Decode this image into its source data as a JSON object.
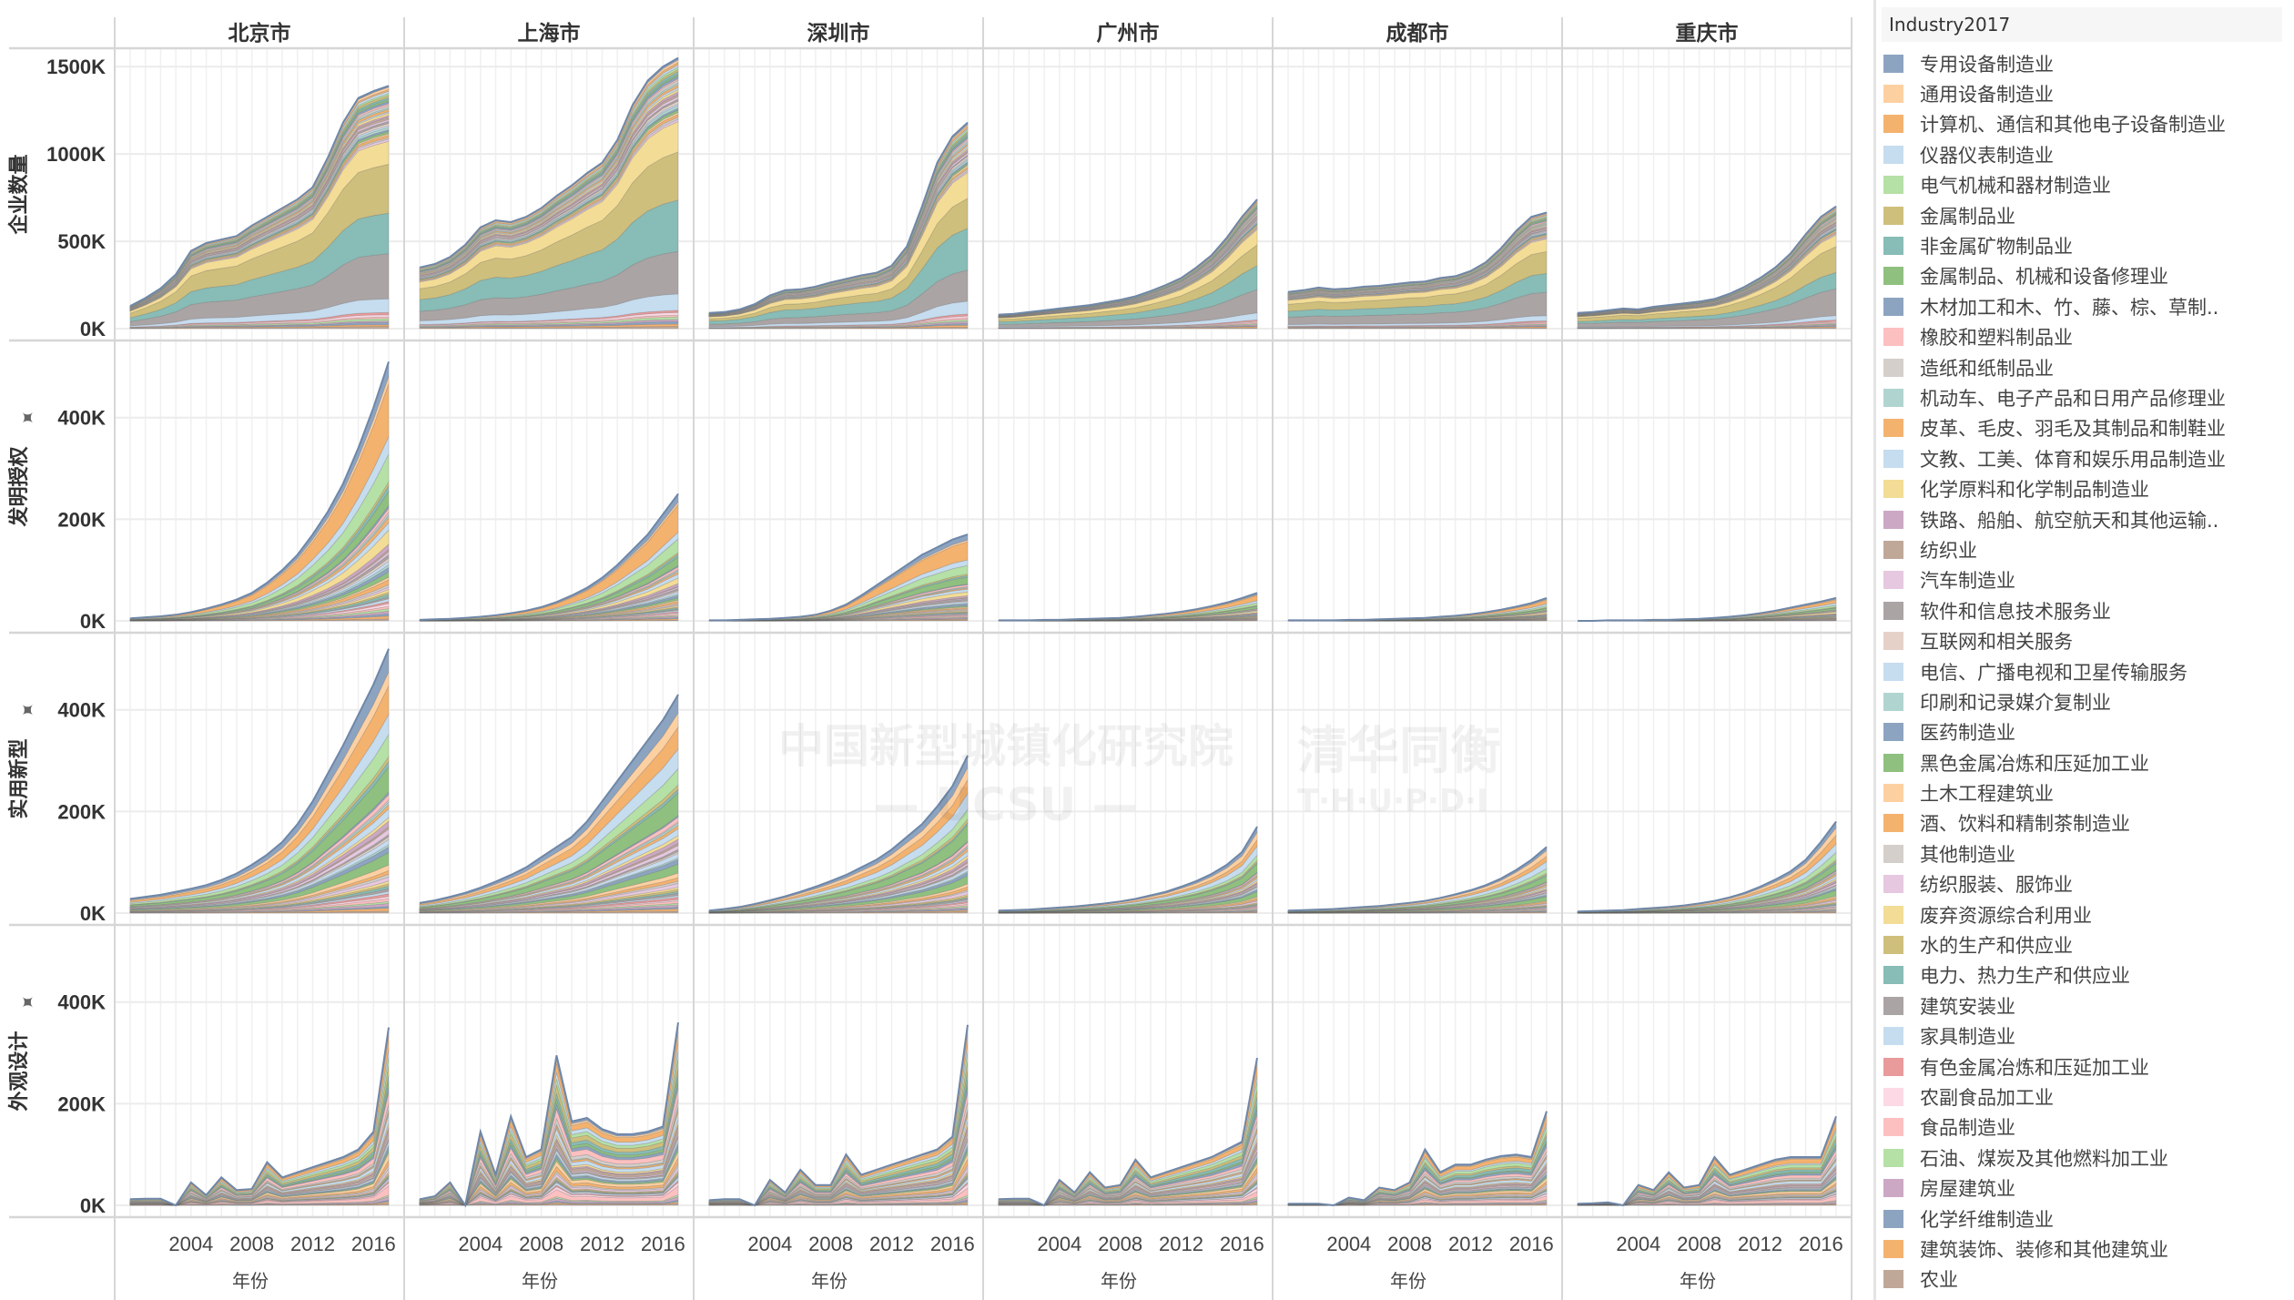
{
  "legend": {
    "title": "Industry2017",
    "items": [
      {
        "label": "专用设备制造业",
        "color": "#8da4c1"
      },
      {
        "label": "通用设备制造业",
        "color": "#fdd0a2"
      },
      {
        "label": "计算机、通信和其他电子设备制造业",
        "color": "#f4b26f"
      },
      {
        "label": "仪器仪表制造业",
        "color": "#c6dcef"
      },
      {
        "label": "电气机械和器材制造业",
        "color": "#b5e0a6"
      },
      {
        "label": "金属制品业",
        "color": "#cfbf7c"
      },
      {
        "label": "非金属矿物制品业",
        "color": "#88bcb6"
      },
      {
        "label": "金属制品、机械和设备修理业",
        "color": "#8fc080"
      },
      {
        "label": "木材加工和木、竹、藤、棕、草制..",
        "color": "#8da4c1"
      },
      {
        "label": "橡胶和塑料制品业",
        "color": "#fcc0c0"
      },
      {
        "label": "造纸和纸制品业",
        "color": "#d4cfcb"
      },
      {
        "label": "机动车、电子产品和日用产品修理业",
        "color": "#b0d5d0"
      },
      {
        "label": "皮革、毛皮、羽毛及其制品和制鞋业",
        "color": "#f4b26f"
      },
      {
        "label": "文教、工美、体育和娱乐用品制造业",
        "color": "#c6dcef"
      },
      {
        "label": "化学原料和化学制品制造业",
        "color": "#f3dc96"
      },
      {
        "label": "铁路、船舶、航空航天和其他运输..",
        "color": "#cca8c4"
      },
      {
        "label": "纺织业",
        "color": "#c0a899"
      },
      {
        "label": "汽车制造业",
        "color": "#e6c8e0"
      },
      {
        "label": "软件和信息技术服务业",
        "color": "#aba4a4"
      },
      {
        "label": "互联网和相关服务",
        "color": "#e6d1c9"
      },
      {
        "label": "电信、广播电视和卫星传输服务",
        "color": "#c6dcef"
      },
      {
        "label": "印刷和记录媒介复制业",
        "color": "#b0d5d0"
      },
      {
        "label": "医药制造业",
        "color": "#8da4c1"
      },
      {
        "label": "黑色金属冶炼和压延加工业",
        "color": "#8fc080"
      },
      {
        "label": "土木工程建筑业",
        "color": "#fdd0a2"
      },
      {
        "label": "酒、饮料和精制茶制造业",
        "color": "#f4b26f"
      },
      {
        "label": "其他制造业",
        "color": "#d4cfcb"
      },
      {
        "label": "纺织服装、服饰业",
        "color": "#e6c8e0"
      },
      {
        "label": "废弃资源综合利用业",
        "color": "#f3dc96"
      },
      {
        "label": "水的生产和供应业",
        "color": "#cfbf7c"
      },
      {
        "label": "电力、热力生产和供应业",
        "color": "#88bcb6"
      },
      {
        "label": "建筑安装业",
        "color": "#aba4a4"
      },
      {
        "label": "家具制造业",
        "color": "#c6dcef"
      },
      {
        "label": "有色金属冶炼和压延加工业",
        "color": "#e99a9a"
      },
      {
        "label": "农副食品加工业",
        "color": "#fcd9e4"
      },
      {
        "label": "食品制造业",
        "color": "#fcc0c0"
      },
      {
        "label": "石油、煤炭及其他燃料加工业",
        "color": "#b5e0a6"
      },
      {
        "label": "房屋建筑业",
        "color": "#cca8c4"
      },
      {
        "label": "化学纤维制造业",
        "color": "#8da4c1"
      },
      {
        "label": "建筑装饰、装修和其他建筑业",
        "color": "#f4b26f"
      },
      {
        "label": "农业",
        "color": "#c0a899"
      }
    ]
  },
  "watermark": {
    "left": "中国新型城镇化研究院",
    "left_sub": "— UCSU —",
    "right": "清华同衡",
    "right_sub": "T·H·U·P·D·I"
  },
  "chart_data": {
    "type": "area",
    "stacked": true,
    "xlabel": "年份",
    "x": [
      2000,
      2001,
      2002,
      2003,
      2004,
      2005,
      2006,
      2007,
      2008,
      2009,
      2010,
      2011,
      2012,
      2013,
      2014,
      2015,
      2016,
      2017
    ],
    "x_ticks": [
      2004,
      2008,
      2012,
      2016
    ],
    "columns": [
      "北京市",
      "上海市",
      "深圳市",
      "广州市",
      "成都市",
      "重庆市"
    ],
    "grid": true,
    "legend_position": "right",
    "rows": [
      {
        "ylabel": "企业数量",
        "pinned": false,
        "ylim": [
          0,
          1600
        ],
        "y_ticks": [
          0,
          500,
          1000,
          1500
        ],
        "y_tick_labels": [
          "0K",
          "500K",
          "1000K",
          "1500K"
        ],
        "industry_weights": [
          0.8,
          0.8,
          0.8,
          0.8,
          0.8,
          0.8,
          0.8,
          0.8,
          0.8,
          0.8,
          0.8,
          0.8,
          0.8,
          0.8,
          0.8,
          0.8,
          0.8,
          0.8,
          0.8,
          0.8,
          0.8,
          0.8,
          0.8,
          0.8,
          0.8,
          0.8,
          0.8,
          0.8,
          10,
          18,
          16,
          18,
          5,
          1,
          0.8,
          0.8,
          0.8,
          0.8,
          0.8,
          0.8,
          0.8
        ],
        "totals": {
          "北京市": [
            130,
            175,
            230,
            310,
            445,
            490,
            510,
            530,
            590,
            640,
            690,
            740,
            810,
            980,
            1180,
            1320,
            1360,
            1390
          ],
          "上海市": [
            350,
            370,
            410,
            480,
            580,
            620,
            610,
            640,
            690,
            760,
            820,
            890,
            950,
            1080,
            1280,
            1420,
            1500,
            1550
          ],
          "深圳市": [
            90,
            95,
            110,
            140,
            190,
            220,
            225,
            240,
            265,
            285,
            305,
            320,
            360,
            470,
            700,
            950,
            1100,
            1180
          ],
          "广州市": [
            80,
            85,
            95,
            105,
            115,
            125,
            135,
            150,
            165,
            185,
            215,
            250,
            290,
            350,
            420,
            520,
            640,
            740
          ],
          "成都市": [
            210,
            220,
            235,
            225,
            230,
            240,
            245,
            255,
            265,
            270,
            290,
            300,
            330,
            380,
            460,
            560,
            640,
            665
          ],
          "重庆市": [
            90,
            95,
            105,
            115,
            110,
            125,
            135,
            145,
            155,
            170,
            200,
            240,
            290,
            350,
            430,
            540,
            640,
            700
          ]
        }
      },
      {
        "ylabel": "发明授权",
        "pinned": true,
        "ylim": [
          0,
          550
        ],
        "y_ticks": [
          0,
          200,
          400
        ],
        "y_tick_labels": [
          "0K",
          "200K",
          "400K"
        ],
        "industry_weights": [
          6,
          3,
          20,
          8,
          10,
          2,
          2,
          8,
          1,
          2,
          1,
          1,
          2,
          3,
          6,
          2,
          1,
          1,
          2,
          1,
          2,
          1,
          2,
          2,
          1,
          2,
          1,
          1,
          1,
          1,
          1,
          1,
          1,
          1,
          1,
          1,
          1,
          1,
          1,
          1,
          1
        ],
        "totals": {
          "北京市": [
            5,
            7,
            9,
            12,
            17,
            24,
            32,
            42,
            55,
            75,
            100,
            130,
            170,
            215,
            270,
            340,
            420,
            510
          ],
          "上海市": [
            2,
            3,
            4,
            6,
            8,
            11,
            15,
            20,
            27,
            37,
            50,
            65,
            85,
            110,
            140,
            170,
            210,
            250
          ],
          "深圳市": [
            1,
            1,
            2,
            3,
            4,
            6,
            8,
            12,
            20,
            32,
            50,
            70,
            90,
            110,
            130,
            145,
            160,
            170
          ],
          "广州市": [
            1,
            1,
            1,
            2,
            2,
            3,
            4,
            5,
            6,
            8,
            11,
            14,
            18,
            23,
            29,
            36,
            45,
            55
          ],
          "成都市": [
            1,
            1,
            1,
            1,
            2,
            2,
            3,
            4,
            5,
            6,
            8,
            10,
            13,
            17,
            22,
            28,
            35,
            45
          ],
          "重庆市": [
            0,
            0,
            1,
            1,
            1,
            2,
            2,
            3,
            4,
            6,
            8,
            11,
            15,
            20,
            26,
            32,
            38,
            45
          ]
        }
      },
      {
        "ylabel": "实用新型",
        "pinned": true,
        "ylim": [
          0,
          550
        ],
        "y_ticks": [
          0,
          200,
          400
        ],
        "y_tick_labels": [
          "0K",
          "200K",
          "400K"
        ],
        "industry_weights": [
          8,
          8,
          10,
          10,
          8,
          2,
          2,
          10,
          1,
          2,
          1,
          1,
          2,
          3,
          2,
          2,
          1,
          2,
          1,
          1,
          2,
          1,
          2,
          6,
          2,
          2,
          1,
          2,
          1,
          1,
          1,
          1,
          1,
          1,
          1,
          1,
          1,
          1,
          1,
          1,
          1
        ],
        "totals": {
          "北京市": [
            28,
            32,
            36,
            42,
            48,
            55,
            65,
            78,
            95,
            115,
            140,
            175,
            220,
            275,
            330,
            390,
            450,
            520
          ],
          "上海市": [
            20,
            25,
            32,
            40,
            50,
            62,
            75,
            90,
            110,
            130,
            150,
            180,
            220,
            260,
            300,
            340,
            380,
            430
          ],
          "深圳市": [
            5,
            8,
            12,
            18,
            25,
            33,
            42,
            52,
            63,
            75,
            90,
            105,
            125,
            150,
            175,
            210,
            250,
            310
          ],
          "广州市": [
            5,
            6,
            7,
            9,
            11,
            13,
            16,
            19,
            23,
            28,
            35,
            42,
            52,
            63,
            77,
            95,
            120,
            170
          ],
          "成都市": [
            5,
            6,
            7,
            8,
            10,
            12,
            14,
            17,
            20,
            24,
            30,
            37,
            45,
            55,
            68,
            85,
            105,
            130
          ],
          "重庆市": [
            3,
            4,
            5,
            6,
            8,
            10,
            12,
            15,
            19,
            24,
            31,
            40,
            52,
            66,
            82,
            105,
            140,
            180
          ]
        }
      },
      {
        "ylabel": "外观设计",
        "pinned": true,
        "ylim": [
          0,
          550
        ],
        "y_ticks": [
          0,
          200,
          400
        ],
        "y_tick_labels": [
          "0K",
          "200K",
          "400K"
        ],
        "industry_weights": [
          3,
          2,
          8,
          4,
          6,
          5,
          5,
          3,
          4,
          6,
          4,
          1,
          2,
          5,
          2,
          2,
          3,
          2,
          1,
          1,
          2,
          1,
          2,
          2,
          4,
          3,
          2,
          2,
          1,
          1,
          1,
          1,
          2,
          1,
          2,
          5,
          1,
          2,
          1,
          1,
          1
        ],
        "totals": {
          "北京市": [
            12,
            13,
            13,
            0,
            45,
            20,
            55,
            30,
            32,
            85,
            55,
            65,
            75,
            85,
            95,
            110,
            145,
            350
          ],
          "上海市": [
            12,
            18,
            45,
            0,
            145,
            60,
            175,
            95,
            110,
            295,
            165,
            172,
            150,
            140,
            140,
            145,
            155,
            360
          ],
          "深圳市": [
            10,
            12,
            12,
            0,
            50,
            25,
            70,
            40,
            40,
            100,
            60,
            70,
            80,
            90,
            100,
            110,
            135,
            355
          ],
          "广州市": [
            12,
            13,
            13,
            0,
            50,
            25,
            65,
            35,
            40,
            90,
            55,
            65,
            75,
            85,
            95,
            110,
            125,
            290
          ],
          "成都市": [
            3,
            3,
            3,
            0,
            15,
            10,
            35,
            30,
            45,
            110,
            65,
            80,
            80,
            90,
            97,
            100,
            95,
            185
          ],
          "重庆市": [
            3,
            4,
            6,
            0,
            40,
            30,
            65,
            35,
            40,
            95,
            60,
            70,
            80,
            90,
            95,
            95,
            95,
            175
          ]
        }
      }
    ]
  }
}
